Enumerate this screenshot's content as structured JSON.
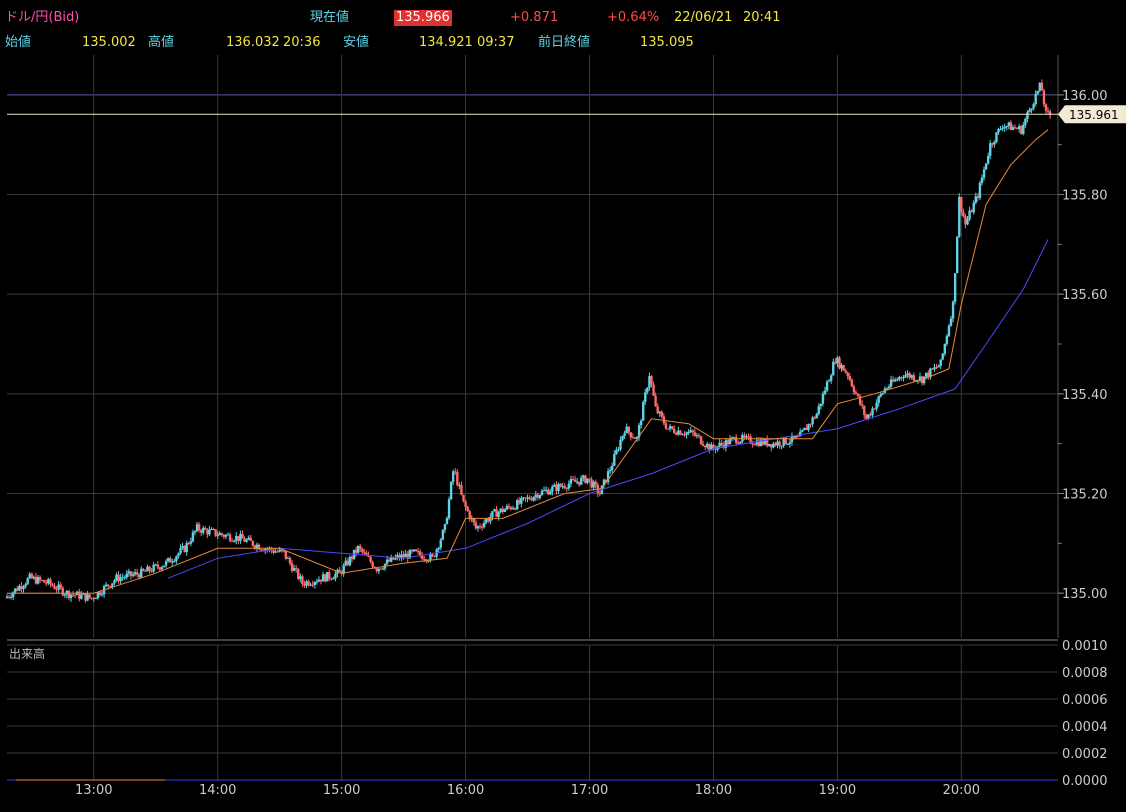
{
  "header": {
    "pair": "ドル/円(Bid)",
    "current_label": "現在値",
    "current_value": "135.966",
    "change": "+0.871",
    "change_pct": "+0.64%",
    "date": "22/06/21",
    "time": "20:41",
    "open_label": "始値",
    "open_value": "135.002",
    "high_label": "高値",
    "high_value": "136.032",
    "high_time": "20:36",
    "low_label": "安値",
    "low_value": "134.921",
    "low_time": "09:37",
    "prev_close_label": "前日終値",
    "prev_close_value": "135.095"
  },
  "chart_data": [
    {
      "type": "candlestick",
      "x_ticks": [
        "13:00",
        "14:00",
        "15:00",
        "16:00",
        "17:00",
        "18:00",
        "19:00",
        "20:00"
      ],
      "y_ticks": [
        "135.00",
        "135.20",
        "135.40",
        "135.60",
        "135.80",
        "136.00"
      ],
      "ylim": [
        134.91,
        136.08
      ],
      "current_price_label": "135.961",
      "colors": {
        "up": "#5fd3e6",
        "down": "#ff6a6a",
        "ma_short": "#e8893a",
        "ma_long": "#4a4aff",
        "grid": "#3a3a3a"
      },
      "price_path": [
        [
          12.3,
          134.99
        ],
        [
          12.5,
          135.03
        ],
        [
          12.65,
          135.02
        ],
        [
          12.8,
          135.0
        ],
        [
          13.0,
          134.99
        ],
        [
          13.2,
          135.03
        ],
        [
          13.4,
          135.04
        ],
        [
          13.6,
          135.06
        ],
        [
          13.75,
          135.09
        ],
        [
          13.85,
          135.13
        ],
        [
          14.0,
          135.12
        ],
        [
          14.2,
          135.11
        ],
        [
          14.4,
          135.09
        ],
        [
          14.55,
          135.08
        ],
        [
          14.7,
          135.02
        ],
        [
          14.85,
          135.03
        ],
        [
          15.0,
          135.04
        ],
        [
          15.15,
          135.09
        ],
        [
          15.3,
          135.05
        ],
        [
          15.45,
          135.07
        ],
        [
          15.6,
          135.08
        ],
        [
          15.75,
          135.07
        ],
        [
          15.85,
          135.13
        ],
        [
          15.92,
          135.25
        ],
        [
          16.0,
          135.18
        ],
        [
          16.1,
          135.13
        ],
        [
          16.25,
          135.16
        ],
        [
          16.45,
          135.18
        ],
        [
          16.6,
          135.2
        ],
        [
          16.85,
          135.22
        ],
        [
          17.0,
          135.23
        ],
        [
          17.1,
          135.2
        ],
        [
          17.2,
          135.26
        ],
        [
          17.3,
          135.33
        ],
        [
          17.4,
          135.31
        ],
        [
          17.5,
          135.44
        ],
        [
          17.55,
          135.37
        ],
        [
          17.65,
          135.33
        ],
        [
          17.85,
          135.32
        ],
        [
          18.0,
          135.29
        ],
        [
          18.2,
          135.31
        ],
        [
          18.5,
          135.3
        ],
        [
          18.7,
          135.31
        ],
        [
          18.85,
          135.36
        ],
        [
          19.0,
          135.47
        ],
        [
          19.1,
          135.44
        ],
        [
          19.25,
          135.35
        ],
        [
          19.4,
          135.41
        ],
        [
          19.55,
          135.44
        ],
        [
          19.7,
          135.43
        ],
        [
          19.85,
          135.46
        ],
        [
          19.95,
          135.58
        ],
        [
          20.0,
          135.79
        ],
        [
          20.05,
          135.74
        ],
        [
          20.15,
          135.8
        ],
        [
          20.25,
          135.9
        ],
        [
          20.35,
          135.94
        ],
        [
          20.5,
          135.93
        ],
        [
          20.6,
          135.99
        ],
        [
          20.66,
          136.02
        ],
        [
          20.7,
          135.96
        ]
      ],
      "ma_short": [
        [
          12.3,
          135.0
        ],
        [
          13.0,
          135.0
        ],
        [
          13.5,
          135.04
        ],
        [
          14.0,
          135.09
        ],
        [
          14.5,
          135.09
        ],
        [
          15.0,
          135.04
        ],
        [
          15.5,
          135.06
        ],
        [
          15.85,
          135.07
        ],
        [
          16.0,
          135.15
        ],
        [
          16.3,
          135.15
        ],
        [
          16.8,
          135.2
        ],
        [
          17.1,
          135.21
        ],
        [
          17.5,
          135.35
        ],
        [
          17.8,
          135.34
        ],
        [
          18.0,
          135.31
        ],
        [
          18.4,
          135.31
        ],
        [
          18.8,
          135.31
        ],
        [
          19.0,
          135.38
        ],
        [
          19.3,
          135.4
        ],
        [
          19.7,
          135.43
        ],
        [
          19.9,
          135.45
        ],
        [
          20.0,
          135.58
        ],
        [
          20.2,
          135.78
        ],
        [
          20.4,
          135.86
        ],
        [
          20.6,
          135.91
        ],
        [
          20.7,
          135.93
        ]
      ],
      "ma_long": [
        [
          13.6,
          135.03
        ],
        [
          14.0,
          135.07
        ],
        [
          14.5,
          135.09
        ],
        [
          15.0,
          135.08
        ],
        [
          15.5,
          135.07
        ],
        [
          16.0,
          135.09
        ],
        [
          16.5,
          135.14
        ],
        [
          17.0,
          135.2
        ],
        [
          17.5,
          135.24
        ],
        [
          18.0,
          135.29
        ],
        [
          18.5,
          135.31
        ],
        [
          19.0,
          135.33
        ],
        [
          19.5,
          135.37
        ],
        [
          19.95,
          135.41
        ],
        [
          20.2,
          135.5
        ],
        [
          20.5,
          135.61
        ],
        [
          20.7,
          135.71
        ]
      ]
    },
    {
      "type": "bar",
      "label": "出来高",
      "y_ticks": [
        "0.0010",
        "0.0008",
        "0.0006",
        "0.0004",
        "0.0002",
        "0.0000"
      ],
      "ylim": [
        0,
        0.001
      ]
    }
  ]
}
